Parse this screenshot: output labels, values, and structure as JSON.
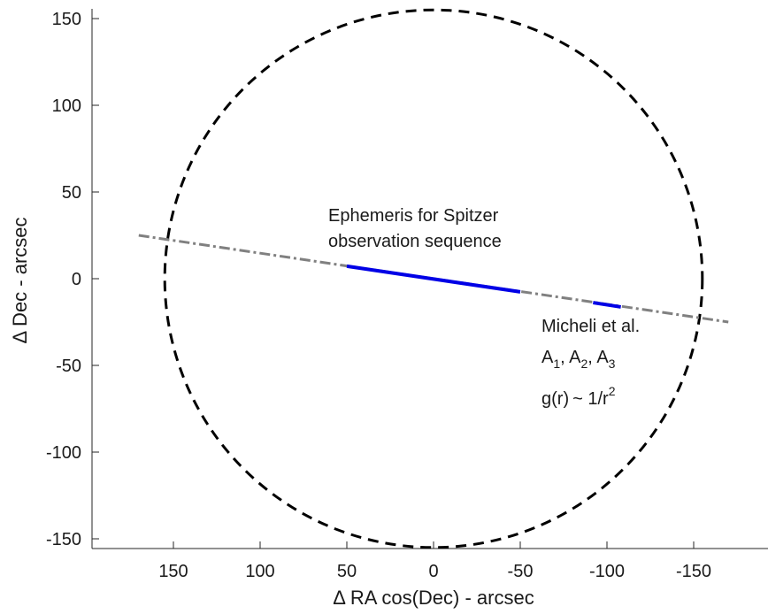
{
  "chart_data": {
    "type": "line",
    "title": "",
    "xlabel": "Δ RA cos(Dec) - arcsec",
    "ylabel": "Δ Dec - arcsec",
    "xlim": [
      170,
      -170
    ],
    "ylim": [
      -155,
      155
    ],
    "x_reversed": true,
    "x_ticks": [
      150,
      100,
      50,
      0,
      -50,
      -100,
      -150
    ],
    "y_ticks": [
      150,
      100,
      50,
      0,
      -50,
      -100,
      -150
    ],
    "grid": false,
    "series": [
      {
        "style": "dashed",
        "color": "#000000",
        "shape": "circle",
        "center": [
          0,
          0
        ],
        "radius": 155
      },
      {
        "style": "dash-dot",
        "color": "#808080",
        "x": [
          170,
          -170
        ],
        "y": [
          25,
          -25
        ]
      },
      {
        "style": "solid",
        "color": "#0000e6",
        "x": [
          50,
          -50
        ],
        "y": [
          7.2,
          -7.6
        ]
      },
      {
        "style": "solid",
        "color": "#0000e6",
        "x": [
          -92,
          -108
        ],
        "y": [
          -13.8,
          -16.3
        ]
      }
    ],
    "annotations": [
      {
        "lines": [
          "Ephemeris for Spitzer",
          "observation sequence"
        ],
        "x": 64,
        "y": 40
      },
      {
        "lines": [
          "Micheli et al."
        ],
        "x": -62,
        "y": -27
      },
      {
        "lines": [
          "A_1, A_2, A_3"
        ],
        "x": -62,
        "y": -45
      },
      {
        "lines": [
          "g(r) ~ 1/r^2"
        ],
        "x": -62,
        "y": -68
      }
    ]
  },
  "annotation_text": {
    "ephemeris_line1": "Ephemeris for Spitzer",
    "ephemeris_line2": "observation sequence",
    "micheli": "Micheli et al.",
    "a_letter": "A",
    "a1_sub": "1",
    "a2_sub": "2",
    "a3_sub": "3",
    "comma": ", ",
    "g_prefix": "g(r)",
    "tilde": "~",
    "g_suffix": " 1/r",
    "g_sup": "2"
  }
}
